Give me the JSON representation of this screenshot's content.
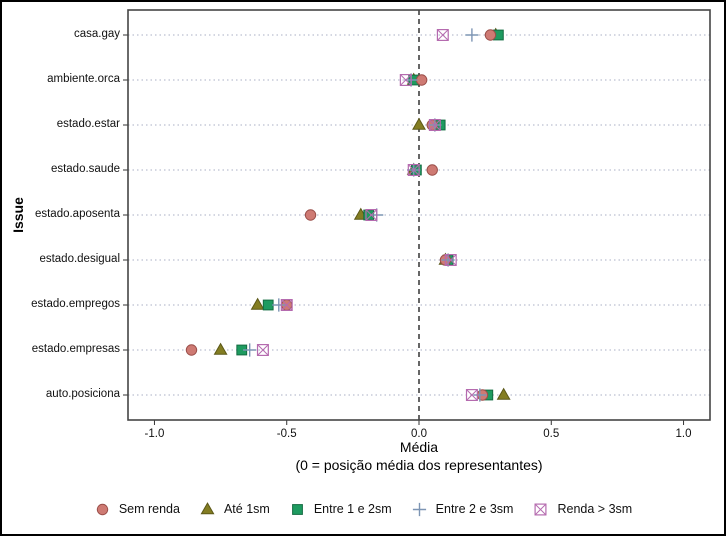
{
  "figure": {
    "background": "#ffffff",
    "outer_border_color": "#000000",
    "panel_border_color": "#454545",
    "gridline_color": "#a9afc4",
    "reference_line_color": "#000000",
    "tick_color": "#333333"
  },
  "chart_data": {
    "type": "scatter",
    "title": "",
    "ylabel": "Issue",
    "xlabel_line1": "Média",
    "xlabel_line2": "(0 = posição média dos representantes)",
    "xlim": [
      -1.1,
      1.1
    ],
    "x_ticks": [
      -1.0,
      -0.5,
      0.0,
      0.5,
      1.0
    ],
    "x_tick_labels": [
      "-1.0",
      "-0.5",
      "0.0",
      "0.5",
      "1.0"
    ],
    "categories": [
      "casa.gay",
      "ambiente.orca",
      "estado.estar",
      "estado.saude",
      "estado.aposenta",
      "estado.desigual",
      "estado.empregos",
      "estado.empresas",
      "auto.posiciona"
    ],
    "reference_line_x": 0,
    "grid": "dotted-horizontal",
    "legend_position": "bottom",
    "series": [
      {
        "name": "Sem renda",
        "marker": "circle",
        "fill": "#CE7A73",
        "stroke": "#9A4E49",
        "values": [
          0.27,
          0.01,
          0.05,
          0.05,
          -0.41,
          0.1,
          -0.5,
          -0.86,
          0.24
        ]
      },
      {
        "name": "Até 1sm",
        "marker": "triangle",
        "fill": "#837D22",
        "stroke": "#5C5818",
        "values": [
          0.29,
          -0.02,
          0.0,
          -0.02,
          -0.22,
          0.1,
          -0.61,
          -0.75,
          0.32
        ]
      },
      {
        "name": "Entre 1 e 2sm",
        "marker": "square",
        "fill": "#1E9B60",
        "stroke": "#136B41",
        "values": [
          0.3,
          -0.02,
          0.08,
          -0.01,
          -0.19,
          0.11,
          -0.57,
          -0.67,
          0.26
        ]
      },
      {
        "name": "Entre 2 e 3sm",
        "marker": "plus",
        "fill": "none",
        "stroke": "#7D95B4",
        "values": [
          0.2,
          -0.03,
          0.06,
          -0.02,
          -0.16,
          0.11,
          -0.53,
          -0.64,
          0.23
        ]
      },
      {
        "name": "Renda > 3sm",
        "marker": "crossed-square",
        "fill": "none",
        "stroke": "#B56BAF",
        "values": [
          0.09,
          -0.05,
          0.06,
          -0.02,
          -0.18,
          0.12,
          -0.5,
          -0.59,
          0.2
        ]
      }
    ]
  }
}
